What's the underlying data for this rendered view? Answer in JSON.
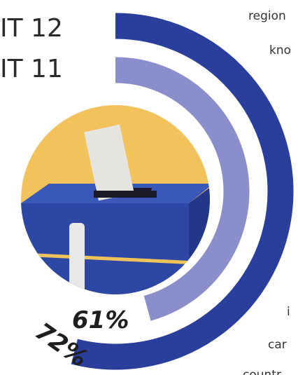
{
  "chart_data": {
    "type": "radial-bar",
    "categories": [
      "IT 12",
      "IT 11"
    ],
    "values": [
      72,
      61
    ],
    "value_labels": [
      "72%",
      "61%"
    ],
    "colors": [
      "#2a3f9c",
      "#8a8ecb"
    ],
    "ylim": [
      0,
      100
    ],
    "annotations": [
      "region",
      "kno",
      "i",
      "car",
      "countr"
    ]
  }
}
